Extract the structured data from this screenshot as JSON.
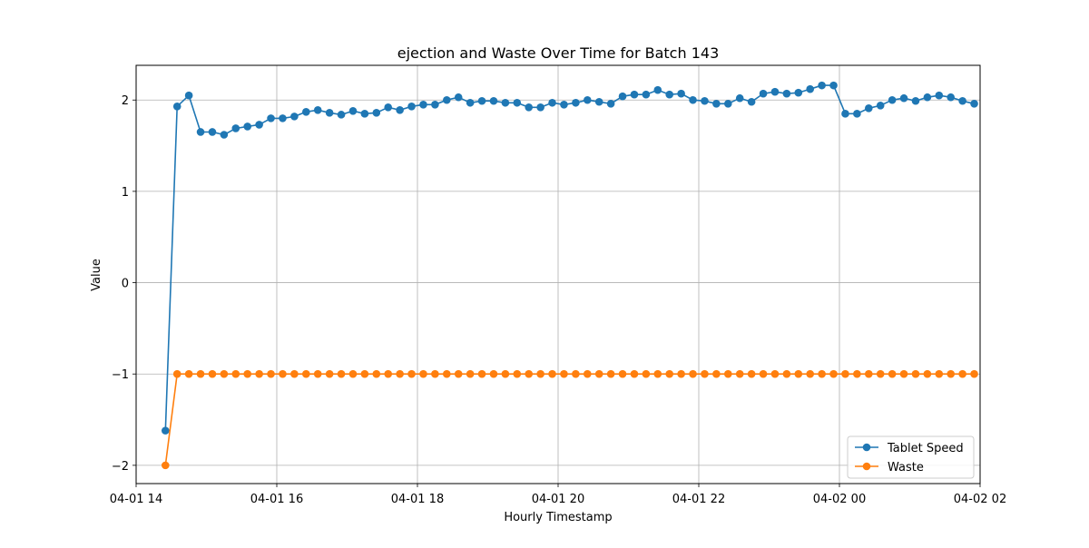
{
  "chart_data": {
    "type": "line",
    "title": "ejection and Waste Over Time for Batch 143",
    "xlabel": "Hourly Timestamp",
    "ylabel": "Value",
    "ylim": [
      -2.2,
      2.38
    ],
    "xlim": [
      "2024-04-01 14:00",
      "2024-04-02 02:00"
    ],
    "grid": true,
    "legend_position": "lower right",
    "x_ticks": [
      "04-01 14",
      "04-01 16",
      "04-01 18",
      "04-01 20",
      "04-01 22",
      "04-02 00",
      "04-02 02"
    ],
    "y_ticks": [
      "2",
      "1",
      "0",
      "−1",
      "−2"
    ],
    "x": [
      "2024-04-01 14:25",
      "2024-04-01 14:35",
      "2024-04-01 14:45",
      "2024-04-01 14:55",
      "2024-04-01 15:05",
      "2024-04-01 15:15",
      "2024-04-01 15:25",
      "2024-04-01 15:35",
      "2024-04-01 15:45",
      "2024-04-01 15:55",
      "2024-04-01 16:05",
      "2024-04-01 16:15",
      "2024-04-01 16:25",
      "2024-04-01 16:35",
      "2024-04-01 16:45",
      "2024-04-01 16:55",
      "2024-04-01 17:05",
      "2024-04-01 17:15",
      "2024-04-01 17:25",
      "2024-04-01 17:35",
      "2024-04-01 17:45",
      "2024-04-01 17:55",
      "2024-04-01 18:05",
      "2024-04-01 18:15",
      "2024-04-01 18:25",
      "2024-04-01 18:35",
      "2024-04-01 18:45",
      "2024-04-01 18:55",
      "2024-04-01 19:05",
      "2024-04-01 19:15",
      "2024-04-01 19:25",
      "2024-04-01 19:35",
      "2024-04-01 19:45",
      "2024-04-01 19:55",
      "2024-04-01 20:05",
      "2024-04-01 20:15",
      "2024-04-01 20:25",
      "2024-04-01 20:35",
      "2024-04-01 20:45",
      "2024-04-01 20:55",
      "2024-04-01 21:05",
      "2024-04-01 21:15",
      "2024-04-01 21:25",
      "2024-04-01 21:35",
      "2024-04-01 21:45",
      "2024-04-01 21:55",
      "2024-04-01 22:05",
      "2024-04-01 22:15",
      "2024-04-01 22:25",
      "2024-04-01 22:35",
      "2024-04-01 22:45",
      "2024-04-01 22:55",
      "2024-04-01 23:05",
      "2024-04-01 23:15",
      "2024-04-01 23:25",
      "2024-04-01 23:35",
      "2024-04-01 23:45",
      "2024-04-01 23:55",
      "2024-04-02 00:05",
      "2024-04-02 00:15",
      "2024-04-02 00:25",
      "2024-04-02 00:35",
      "2024-04-02 00:45",
      "2024-04-02 00:55",
      "2024-04-02 01:05",
      "2024-04-02 01:15",
      "2024-04-02 01:25",
      "2024-04-02 01:35",
      "2024-04-02 01:45",
      "2024-04-02 01:55"
    ],
    "series": [
      {
        "name": "Tablet Speed",
        "color": "#1f77b4",
        "values": [
          -1.62,
          1.93,
          2.05,
          1.65,
          1.65,
          1.62,
          1.69,
          1.71,
          1.73,
          1.8,
          1.8,
          1.82,
          1.87,
          1.89,
          1.86,
          1.84,
          1.88,
          1.85,
          1.86,
          1.92,
          1.89,
          1.93,
          1.95,
          1.95,
          2.0,
          2.03,
          1.97,
          1.99,
          1.99,
          1.97,
          1.97,
          1.92,
          1.92,
          1.97,
          1.95,
          1.97,
          2.0,
          1.98,
          1.96,
          2.04,
          2.06,
          2.06,
          2.11,
          2.06,
          2.07,
          2.0,
          1.99,
          1.96,
          1.96,
          2.02,
          1.98,
          2.07,
          2.09,
          2.07,
          2.08,
          2.12,
          2.16,
          2.16,
          1.85,
          1.85,
          1.91,
          1.94,
          2.0,
          2.02,
          1.99,
          2.03,
          2.05,
          2.03,
          1.99,
          1.96
        ]
      },
      {
        "name": "Waste",
        "color": "#ff7f0e",
        "values": [
          -2.0,
          -1.0,
          -1.0,
          -1.0,
          -1.0,
          -1.0,
          -1.0,
          -1.0,
          -1.0,
          -1.0,
          -1.0,
          -1.0,
          -1.0,
          -1.0,
          -1.0,
          -1.0,
          -1.0,
          -1.0,
          -1.0,
          -1.0,
          -1.0,
          -1.0,
          -1.0,
          -1.0,
          -1.0,
          -1.0,
          -1.0,
          -1.0,
          -1.0,
          -1.0,
          -1.0,
          -1.0,
          -1.0,
          -1.0,
          -1.0,
          -1.0,
          -1.0,
          -1.0,
          -1.0,
          -1.0,
          -1.0,
          -1.0,
          -1.0,
          -1.0,
          -1.0,
          -1.0,
          -1.0,
          -1.0,
          -1.0,
          -1.0,
          -1.0,
          -1.0,
          -1.0,
          -1.0,
          -1.0,
          -1.0,
          -1.0,
          -1.0,
          -1.0,
          -1.0,
          -1.0,
          -1.0,
          -1.0,
          -1.0,
          -1.0,
          -1.0,
          -1.0,
          -1.0,
          -1.0,
          -1.0
        ]
      }
    ]
  }
}
